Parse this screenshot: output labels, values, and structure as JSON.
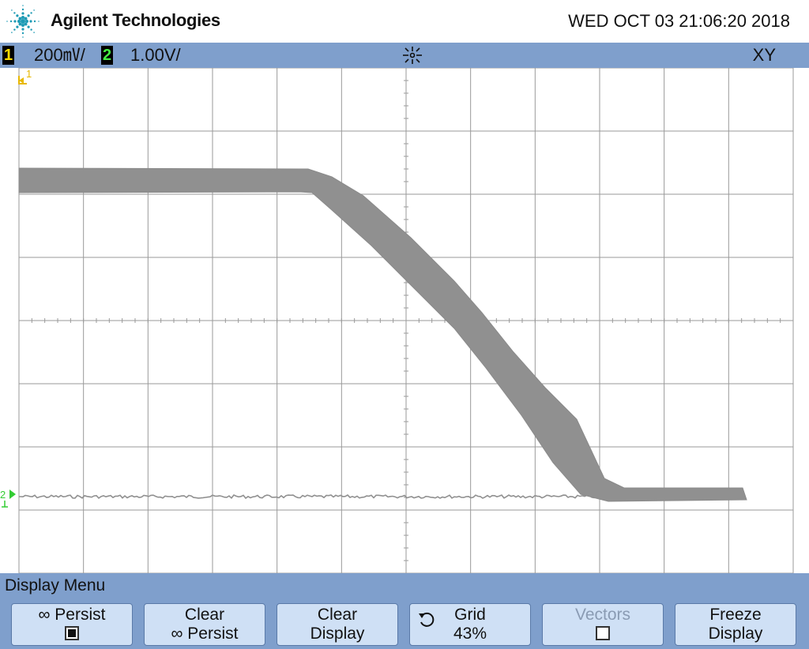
{
  "header": {
    "brand": "Agilent Technologies",
    "datetime": "WED OCT 03 21:06:20 2018"
  },
  "status_bar": {
    "ch1": {
      "badge": "1",
      "scale": "200㎷/",
      "color": "#ffdd00"
    },
    "ch2": {
      "badge": "2",
      "scale": "1.00V/",
      "color": "#44ee44"
    },
    "mode": "XY",
    "acquire_icon": "sparkle-icon"
  },
  "plot": {
    "ch1_marker": "1",
    "ch2_marker": "2",
    "trace_color": "#909090"
  },
  "menu": {
    "title": "Display Menu",
    "softkeys": [
      {
        "line1": "∞ Persist",
        "checked": true
      },
      {
        "line1": "Clear",
        "line2": "∞ Persist"
      },
      {
        "line1": "Clear",
        "line2": "Display"
      },
      {
        "line1": "Grid",
        "line2": "43%",
        "icon": "rotate-knob-icon"
      },
      {
        "line1": "Vectors",
        "checked": false,
        "disabled": true
      },
      {
        "line1": "Freeze",
        "line2": "Display"
      }
    ]
  }
}
